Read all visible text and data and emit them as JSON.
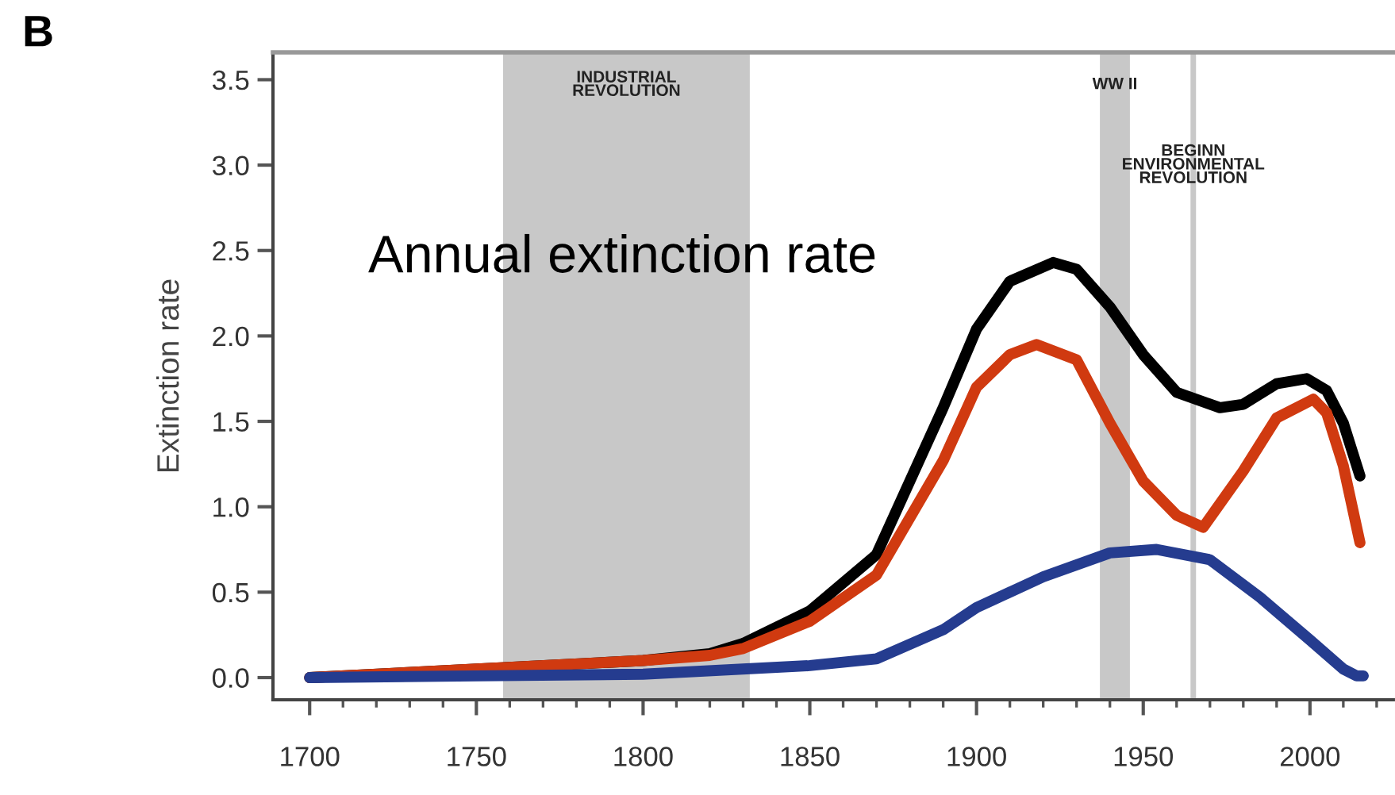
{
  "chart_data": {
    "type": "line",
    "xlabel": null,
    "ylabel": "Extinction rate",
    "annotations": [
      "B",
      "Annual extinction rate"
    ],
    "series": [
      {
        "color": "#000000",
        "x": [
          1700,
          1800,
          1820,
          1830,
          1850,
          1870,
          1890,
          1900,
          1910,
          1923,
          1930,
          1940,
          1950,
          1960,
          1973,
          1980,
          1990,
          1999,
          2005,
          2010,
          2015
        ],
        "values": [
          0,
          0.1,
          0.14,
          0.2,
          0.39,
          0.72,
          1.58,
          2.04,
          2.32,
          2.43,
          2.39,
          2.17,
          1.89,
          1.67,
          1.58,
          1.6,
          1.72,
          1.75,
          1.68,
          1.49,
          1.18
        ]
      },
      {
        "color": "#d03a10",
        "x": [
          1700,
          1750,
          1800,
          1820,
          1830,
          1850,
          1870,
          1890,
          1900,
          1910,
          1918,
          1930,
          1940,
          1950,
          1960,
          1968,
          1980,
          1990,
          2001,
          2005,
          2010,
          2015
        ],
        "values": [
          0,
          0.05,
          0.1,
          0.13,
          0.17,
          0.33,
          0.6,
          1.27,
          1.7,
          1.89,
          1.95,
          1.86,
          1.49,
          1.15,
          0.95,
          0.88,
          1.21,
          1.52,
          1.63,
          1.55,
          1.24,
          0.79
        ]
      },
      {
        "color": "#253c8f",
        "x": [
          1700,
          1750,
          1800,
          1850,
          1870,
          1890,
          1900,
          1920,
          1940,
          1954,
          1970,
          1985,
          2000,
          2010,
          2014,
          2016
        ],
        "values": [
          0,
          0.01,
          0.02,
          0.07,
          0.11,
          0.28,
          0.41,
          0.59,
          0.73,
          0.75,
          0.69,
          0.47,
          0.22,
          0.05,
          0.01,
          0.01
        ]
      }
    ],
    "bands": [
      {
        "axis": "x",
        "from": 1758,
        "to": 1832,
        "label": "INDUSTRIAL\nREVOLUTION",
        "color": "#c8c8c8"
      },
      {
        "axis": "x",
        "from": 1937,
        "to": 1946,
        "label": "WW II",
        "color": "#c8c8c8"
      }
    ],
    "ref_lines": [
      {
        "axis": "x",
        "value": 1965,
        "label": "BEGINN\nENVIRONMENTAL\nREVOLUTION",
        "color": "#c8c8c8",
        "line_style": "solid"
      }
    ],
    "xlim": [
      1689,
      2025
    ],
    "ylim": [
      -0.13,
      3.66
    ],
    "xticks": [
      1700,
      {
        "value": 1710,
        "label": null
      },
      {
        "value": 1720,
        "label": null
      },
      {
        "value": 1730,
        "label": null
      },
      {
        "value": 1740,
        "label": null
      },
      1750,
      {
        "value": 1760,
        "label": null
      },
      {
        "value": 1770,
        "label": null
      },
      {
        "value": 1780,
        "label": null
      },
      {
        "value": 1790,
        "label": null
      },
      1800,
      {
        "value": 1810,
        "label": null
      },
      {
        "value": 1820,
        "label": null
      },
      {
        "value": 1830,
        "label": null
      },
      {
        "value": 1840,
        "label": null
      },
      1850,
      {
        "value": 1860,
        "label": null
      },
      {
        "value": 1870,
        "label": null
      },
      {
        "value": 1880,
        "label": null
      },
      {
        "value": 1890,
        "label": null
      },
      1900,
      {
        "value": 1910,
        "label": null
      },
      {
        "value": 1920,
        "label": null
      },
      {
        "value": 1930,
        "label": null
      },
      {
        "value": 1940,
        "label": null
      },
      1950,
      {
        "value": 1960,
        "label": null
      },
      {
        "value": 1970,
        "label": null
      },
      {
        "value": 1980,
        "label": null
      },
      {
        "value": 1990,
        "label": null
      },
      2000,
      {
        "value": 2010,
        "label": null
      },
      {
        "value": 2020,
        "label": null
      }
    ],
    "yticks": [
      {
        "value": 0,
        "label": "0.0"
      },
      {
        "value": 0.5,
        "label": "0.5"
      },
      {
        "value": 1,
        "label": "1.0"
      },
      {
        "value": 1.5,
        "label": "1.5"
      },
      {
        "value": 2,
        "label": "2.0"
      },
      {
        "value": 2.5,
        "label": "2.5"
      },
      {
        "value": 3,
        "label": "3.0"
      },
      {
        "value": 3.5,
        "label": "3.5"
      }
    ],
    "grid": false,
    "legend": false,
    "marker": "none",
    "line_style": "solid"
  }
}
